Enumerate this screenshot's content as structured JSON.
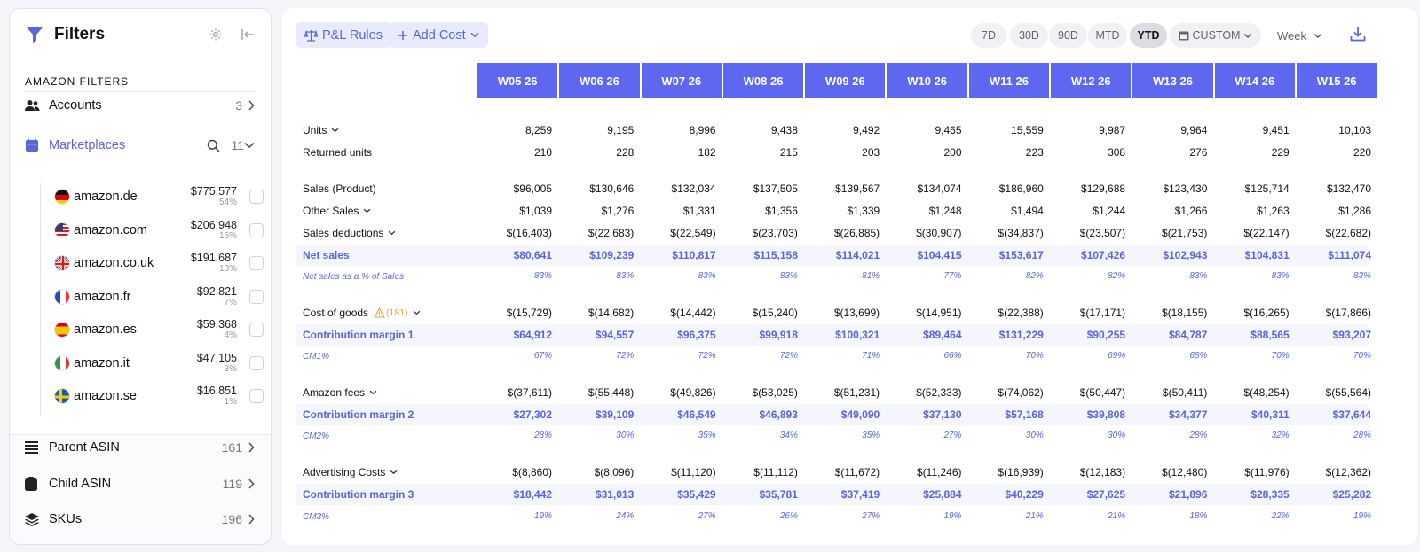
{
  "sidebar": {
    "title": "Filters",
    "section_title": "AMAZON FILTERS",
    "accounts": {
      "label": "Accounts",
      "count": "3"
    },
    "marketplaces": {
      "label": "Marketplaces",
      "count": "11",
      "items": [
        {
          "name": "amazon.de",
          "amount": "$775,577",
          "pct": "54%"
        },
        {
          "name": "amazon.com",
          "amount": "$206,948",
          "pct": "15%"
        },
        {
          "name": "amazon.co.uk",
          "amount": "$191,687",
          "pct": "13%"
        },
        {
          "name": "amazon.fr",
          "amount": "$92,821",
          "pct": "7%"
        },
        {
          "name": "amazon.es",
          "amount": "$59,368",
          "pct": "4%"
        },
        {
          "name": "amazon.it",
          "amount": "$47,105",
          "pct": "3%"
        },
        {
          "name": "amazon.se",
          "amount": "$16,851",
          "pct": "1%"
        }
      ]
    },
    "parent_asin": {
      "label": "Parent ASIN",
      "count": "161"
    },
    "child_asin": {
      "label": "Child ASIN",
      "count": "119"
    },
    "skus": {
      "label": "SKUs",
      "count": "196"
    }
  },
  "toolbar": {
    "pl_rules": "P&L Rules",
    "add_cost": "Add Cost",
    "ranges": [
      "7D",
      "30D",
      "90D",
      "MTD",
      "YTD"
    ],
    "active_range": "YTD",
    "custom": "CUSTOM",
    "period": "Week"
  },
  "colors": {
    "accent": "#5865dd",
    "header_bg": "#5d67ef",
    "highlight_row": "#f4f5fd",
    "warning": "#e2a23b"
  },
  "table": {
    "columns": [
      "W05 26",
      "W06 26",
      "W07 26",
      "W08 26",
      "W09 26",
      "W10 26",
      "W11 26",
      "W12 26",
      "W13 26",
      "W14 26",
      "W15 26"
    ],
    "rows": [
      {
        "label": "Units",
        "type": "normal",
        "chevron": true,
        "values": [
          "8,259",
          "9,195",
          "8,996",
          "9,438",
          "9,492",
          "9,465",
          "15,559",
          "9,987",
          "9,964",
          "9,451",
          "10,103"
        ]
      },
      {
        "label": "Returned units",
        "type": "normal",
        "chevron": false,
        "values": [
          "210",
          "228",
          "182",
          "215",
          "203",
          "200",
          "223",
          "308",
          "276",
          "229",
          "220"
        ]
      },
      {
        "label": "Sales (Product)",
        "type": "normal",
        "chevron": false,
        "values": [
          "$96,005",
          "$130,646",
          "$132,034",
          "$137,505",
          "$139,567",
          "$134,074",
          "$186,960",
          "$129,688",
          "$123,430",
          "$125,714",
          "$132,470"
        ]
      },
      {
        "label": "Other Sales",
        "type": "normal",
        "chevron": true,
        "values": [
          "$1,039",
          "$1,276",
          "$1,331",
          "$1,356",
          "$1,339",
          "$1,248",
          "$1,494",
          "$1,244",
          "$1,266",
          "$1,263",
          "$1,286"
        ]
      },
      {
        "label": "Sales deductions",
        "type": "normal",
        "chevron": true,
        "values": [
          "$(16,403)",
          "$(22,683)",
          "$(22,549)",
          "$(23,703)",
          "$(26,885)",
          "$(30,907)",
          "$(34,837)",
          "$(23,507)",
          "$(21,753)",
          "$(22,147)",
          "$(22,682)"
        ]
      },
      {
        "label": "Net sales",
        "type": "blue",
        "chevron": false,
        "values": [
          "$80,641",
          "$109,239",
          "$110,817",
          "$115,158",
          "$114,021",
          "$104,415",
          "$153,617",
          "$107,426",
          "$102,943",
          "$104,831",
          "$111,074"
        ]
      },
      {
        "label": "Net sales as a % of Sales",
        "type": "pct",
        "chevron": false,
        "values": [
          "83%",
          "83%",
          "83%",
          "83%",
          "81%",
          "77%",
          "82%",
          "82%",
          "83%",
          "83%",
          "83%"
        ]
      },
      {
        "label": "Cost of goods",
        "type": "normal",
        "chevron": true,
        "warning": "(181)",
        "values": [
          "$(15,729)",
          "$(14,682)",
          "$(14,442)",
          "$(15,240)",
          "$(13,699)",
          "$(14,951)",
          "$(22,388)",
          "$(17,171)",
          "$(18,155)",
          "$(16,265)",
          "$(17,866)"
        ]
      },
      {
        "label": "Contribution margin 1",
        "type": "blue",
        "chevron": false,
        "values": [
          "$64,912",
          "$94,557",
          "$96,375",
          "$99,918",
          "$100,321",
          "$89,464",
          "$131,229",
          "$90,255",
          "$84,787",
          "$88,565",
          "$93,207"
        ]
      },
      {
        "label": "CM1%",
        "type": "pct",
        "chevron": false,
        "values": [
          "67%",
          "72%",
          "72%",
          "72%",
          "71%",
          "66%",
          "70%",
          "69%",
          "68%",
          "70%",
          "70%"
        ]
      },
      {
        "label": "Amazon fees",
        "type": "normal",
        "chevron": true,
        "values": [
          "$(37,611)",
          "$(55,448)",
          "$(49,826)",
          "$(53,025)",
          "$(51,231)",
          "$(52,333)",
          "$(74,062)",
          "$(50,447)",
          "$(50,411)",
          "$(48,254)",
          "$(55,564)"
        ]
      },
      {
        "label": "Contribution margin 2",
        "type": "blue",
        "chevron": false,
        "values": [
          "$27,302",
          "$39,109",
          "$46,549",
          "$46,893",
          "$49,090",
          "$37,130",
          "$57,168",
          "$39,808",
          "$34,377",
          "$40,311",
          "$37,644"
        ]
      },
      {
        "label": "CM2%",
        "type": "pct",
        "chevron": false,
        "values": [
          "28%",
          "30%",
          "35%",
          "34%",
          "35%",
          "27%",
          "30%",
          "30%",
          "28%",
          "32%",
          "28%"
        ]
      },
      {
        "label": "Advertising Costs",
        "type": "normal",
        "chevron": true,
        "values": [
          "$(8,860)",
          "$(8,096)",
          "$(11,120)",
          "$(11,112)",
          "$(11,672)",
          "$(11,246)",
          "$(16,939)",
          "$(12,183)",
          "$(12,480)",
          "$(11,976)",
          "$(12,362)"
        ]
      },
      {
        "label": "Contribution margin 3",
        "type": "blue",
        "chevron": false,
        "values": [
          "$18,442",
          "$31,013",
          "$35,429",
          "$35,781",
          "$37,419",
          "$25,884",
          "$40,229",
          "$27,625",
          "$21,896",
          "$28,335",
          "$25,282"
        ]
      },
      {
        "label": "CM3%",
        "type": "pct",
        "chevron": false,
        "values": [
          "19%",
          "24%",
          "27%",
          "26%",
          "27%",
          "19%",
          "21%",
          "21%",
          "18%",
          "22%",
          "19%"
        ]
      }
    ]
  }
}
